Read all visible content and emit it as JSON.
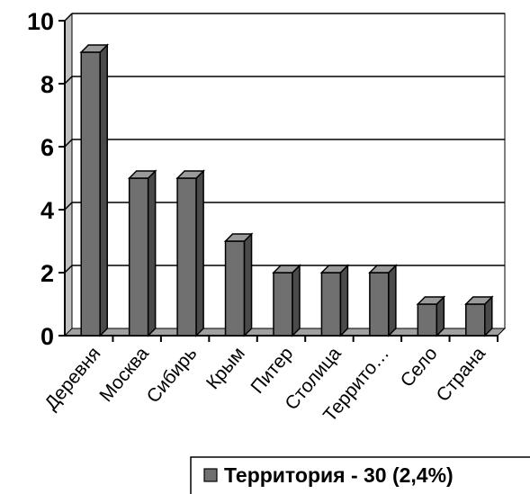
{
  "chart_data": {
    "type": "bar",
    "style": "3d-column",
    "categories": [
      "Деревня",
      "Москва",
      "Сибирь",
      "Крым",
      "Питер",
      "Столица",
      "Террито…",
      "Село",
      "Страна"
    ],
    "series": [
      {
        "name": "Территория - 30 (2,4%)",
        "values": [
          9,
          5,
          5,
          3,
          2,
          2,
          2,
          1,
          1
        ]
      }
    ],
    "ylim": [
      0,
      10
    ],
    "yticks": [
      "0",
      "2",
      "4",
      "6",
      "8",
      "10"
    ],
    "grid": true,
    "legend": "bottom-right",
    "colors": {
      "bar_face": "#707070",
      "bar_side": "#4a4a4a",
      "bar_top": "#9a9a9a",
      "wall": "#c0c0c0"
    }
  }
}
